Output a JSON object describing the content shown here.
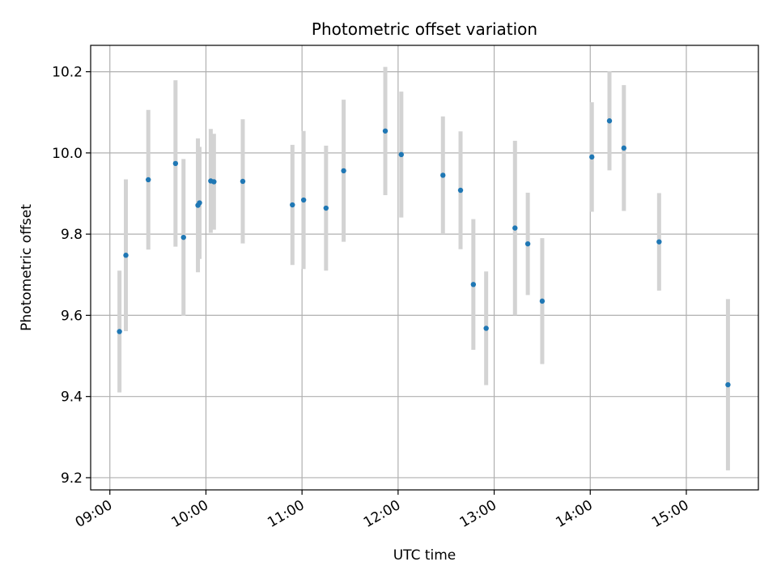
{
  "chart_data": {
    "type": "scatter",
    "title": "Photometric offset variation",
    "xlabel": "UTC time",
    "ylabel": "Photometric offset",
    "x_ticks": [
      "09:00",
      "10:00",
      "11:00",
      "12:00",
      "13:00",
      "14:00",
      "15:00"
    ],
    "y_ticks": [
      "9.2",
      "9.4",
      "9.6",
      "9.8",
      "10.0",
      "10.2"
    ],
    "xlim": [
      "08:48",
      "15:45"
    ],
    "ylim": [
      9.17,
      10.265
    ],
    "grid": true,
    "colors": {
      "point": "#1f77b4",
      "errorbar": "#d3d3d3",
      "grid": "#b0b0b0"
    },
    "points": [
      {
        "t": "09:06",
        "y": 9.56,
        "err": 0.15
      },
      {
        "t": "09:10",
        "y": 9.748,
        "err": 0.187
      },
      {
        "t": "09:24",
        "y": 9.934,
        "err": 0.172
      },
      {
        "t": "09:41",
        "y": 9.974,
        "err": 0.205
      },
      {
        "t": "09:46",
        "y": 9.792,
        "err": 0.193
      },
      {
        "t": "09:55",
        "y": 9.871,
        "err": 0.165
      },
      {
        "t": "09:56",
        "y": 9.877,
        "err": 0.138
      },
      {
        "t": "10:03",
        "y": 9.931,
        "err": 0.128
      },
      {
        "t": "10:05",
        "y": 9.929,
        "err": 0.118
      },
      {
        "t": "10:23",
        "y": 9.93,
        "err": 0.153
      },
      {
        "t": "10:54",
        "y": 9.872,
        "err": 0.148
      },
      {
        "t": "11:01",
        "y": 9.884,
        "err": 0.17
      },
      {
        "t": "11:15",
        "y": 9.864,
        "err": 0.154
      },
      {
        "t": "11:26",
        "y": 9.956,
        "err": 0.175
      },
      {
        "t": "11:52",
        "y": 10.054,
        "err": 0.158
      },
      {
        "t": "12:02",
        "y": 9.996,
        "err": 0.155
      },
      {
        "t": "12:28",
        "y": 9.945,
        "err": 0.145
      },
      {
        "t": "12:39",
        "y": 9.908,
        "err": 0.145
      },
      {
        "t": "12:47",
        "y": 9.676,
        "err": 0.161
      },
      {
        "t": "12:55",
        "y": 9.568,
        "err": 0.14
      },
      {
        "t": "13:13",
        "y": 9.815,
        "err": 0.215
      },
      {
        "t": "13:21",
        "y": 9.776,
        "err": 0.126
      },
      {
        "t": "13:30",
        "y": 9.635,
        "err": 0.155
      },
      {
        "t": "14:01",
        "y": 9.99,
        "err": 0.135
      },
      {
        "t": "14:12",
        "y": 10.079,
        "err": 0.122
      },
      {
        "t": "14:21",
        "y": 10.012,
        "err": 0.155
      },
      {
        "t": "14:43",
        "y": 9.781,
        "err": 0.12
      },
      {
        "t": "15:26",
        "y": 9.429,
        "err": 0.211
      }
    ]
  }
}
